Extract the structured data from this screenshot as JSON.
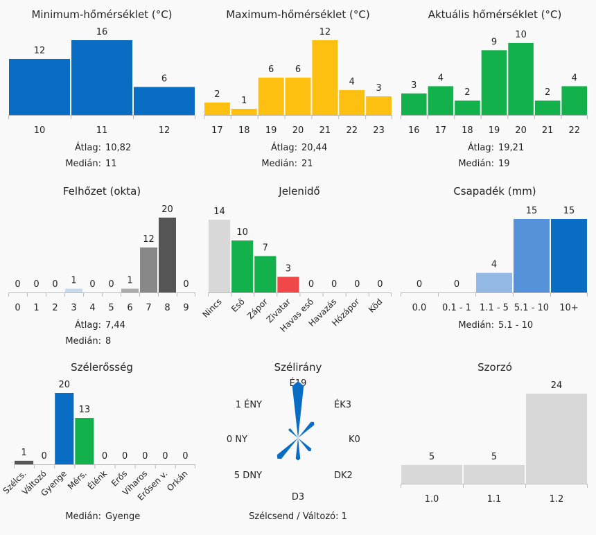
{
  "chart_data": [
    {
      "id": "min",
      "type": "bar",
      "title": "Minimum-hőmérséklet (°C)",
      "categories": [
        "10",
        "11",
        "12"
      ],
      "values": [
        12,
        16,
        6
      ],
      "colors": [
        "#0a6dc4",
        "#0a6dc4",
        "#0a6dc4"
      ],
      "labels_rotated": false,
      "stats": [
        {
          "label": "Átlag:",
          "value": "10,82"
        },
        {
          "label": "Medián:",
          "value": "11"
        }
      ]
    },
    {
      "id": "max",
      "type": "bar",
      "title": "Maximum-hőmérséklet (°C)",
      "categories": [
        "17",
        "18",
        "19",
        "20",
        "21",
        "22",
        "23"
      ],
      "values": [
        2,
        1,
        6,
        6,
        12,
        4,
        3
      ],
      "colors": [
        "#fec010",
        "#fec010",
        "#fec010",
        "#fec010",
        "#fec010",
        "#fec010",
        "#fec010"
      ],
      "labels_rotated": false,
      "stats": [
        {
          "label": "Átlag:",
          "value": "20,44"
        },
        {
          "label": "Medián:",
          "value": "21"
        }
      ]
    },
    {
      "id": "act",
      "type": "bar",
      "title": "Aktuális hőmérséklet (°C)",
      "categories": [
        "16",
        "17",
        "18",
        "19",
        "20",
        "21",
        "22"
      ],
      "values": [
        3,
        4,
        2,
        9,
        10,
        2,
        4
      ],
      "colors": [
        "#12b14b",
        "#12b14b",
        "#12b14b",
        "#12b14b",
        "#12b14b",
        "#12b14b",
        "#12b14b"
      ],
      "labels_rotated": false,
      "stats": [
        {
          "label": "Átlag:",
          "value": "19,21"
        },
        {
          "label": "Medián:",
          "value": "19"
        }
      ]
    },
    {
      "id": "cloud",
      "type": "bar",
      "title": "Felhőzet (okta)",
      "categories": [
        "0",
        "1",
        "2",
        "3",
        "4",
        "5",
        "6",
        "7",
        "8",
        "9"
      ],
      "values": [
        0,
        0,
        0,
        1,
        0,
        0,
        1,
        12,
        20,
        0
      ],
      "colors": [
        "#cccccc",
        "#cccccc",
        "#cccccc",
        "#c7d9ee",
        "#cccccc",
        "#cccccc",
        "#aaaaaa",
        "#888888",
        "#555555",
        "#cccccc"
      ],
      "labels_rotated": false,
      "stats": [
        {
          "label": "Átlag:",
          "value": "7,44"
        },
        {
          "label": "Medián:",
          "value": "8"
        }
      ]
    },
    {
      "id": "phen",
      "type": "bar",
      "title": "Jelenidő",
      "categories": [
        "Nincs",
        "Eső",
        "Zápor",
        "Zivatar",
        "Havas eső",
        "Havazás",
        "Hózápor",
        "Köd"
      ],
      "values": [
        14,
        10,
        7,
        3,
        0,
        0,
        0,
        0
      ],
      "colors": [
        "#d8d8d8",
        "#12b14b",
        "#12b14b",
        "#f04848",
        "#cccccc",
        "#cccccc",
        "#cccccc",
        "#cccccc"
      ],
      "labels_rotated": true,
      "stats": []
    },
    {
      "id": "prec",
      "type": "bar",
      "title": "Csapadék (mm)",
      "categories": [
        "0.0",
        "0.1 - 1",
        "1.1 - 5",
        "5.1 - 10",
        "10+"
      ],
      "values": [
        0,
        0,
        4,
        15,
        15
      ],
      "colors": [
        "#cccccc",
        "#cccccc",
        "#94b9e4",
        "#5592d9",
        "#0a6dc4"
      ],
      "labels_rotated": false,
      "stats": [
        {
          "label": "Medián:",
          "value": "5.1 - 10"
        }
      ]
    },
    {
      "id": "wind",
      "type": "bar",
      "title": "Szélerősség",
      "categories": [
        "Szélcs.",
        "Változó",
        "Gyenge",
        "Mérs.",
        "Élénk",
        "Erős",
        "Viharos",
        "Erősen v.",
        "Orkán"
      ],
      "values": [
        1,
        0,
        20,
        13,
        0,
        0,
        0,
        0,
        0
      ],
      "colors": [
        "#555555",
        "#cccccc",
        "#0a6dc4",
        "#12b14b",
        "#cccccc",
        "#cccccc",
        "#cccccc",
        "#cccccc",
        "#cccccc"
      ],
      "labels_rotated": true,
      "stats": [
        {
          "label": "Medián:",
          "value": "Gyenge"
        }
      ]
    },
    {
      "id": "dir",
      "type": "rose",
      "title": "Szélirány",
      "directions": [
        {
          "name": "É",
          "count": 19
        },
        {
          "name": "ÉK",
          "count": 3
        },
        {
          "name": "K",
          "count": 0
        },
        {
          "name": "DK",
          "count": 2
        },
        {
          "name": "D",
          "count": 3
        },
        {
          "name": "DNY",
          "count": 5
        },
        {
          "name": "NY",
          "count": 0
        },
        {
          "name": "ÉNY",
          "count": 1
        }
      ],
      "footer_label": "Szélcsend / Változó:",
      "footer_value": "1",
      "color": "#0a6dc4"
    },
    {
      "id": "mult",
      "type": "bar",
      "title": "Szorzó",
      "categories": [
        "1.0",
        "1.1",
        "1.2"
      ],
      "values": [
        5,
        5,
        24
      ],
      "colors": [
        "#d8d8d8",
        "#d8d8d8",
        "#d8d8d8"
      ],
      "labels_rotated": false,
      "stats": []
    }
  ]
}
